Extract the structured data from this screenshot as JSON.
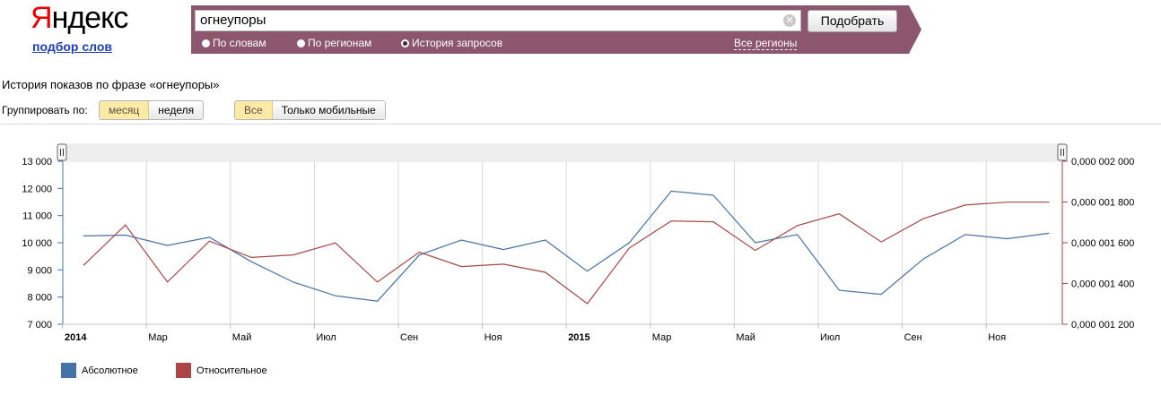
{
  "logo": {
    "brand_first": "Я",
    "brand_rest": "ндекс",
    "subtitle": "подбор слов"
  },
  "search": {
    "value": "огнеупоры",
    "submit_label": "Подобрать",
    "options": [
      {
        "label": "По словам",
        "selected": false
      },
      {
        "label": "По регионам",
        "selected": false
      },
      {
        "label": "История запросов",
        "selected": true
      }
    ],
    "regions_link": "Все регионы"
  },
  "history": {
    "title": "История показов по фразе «огнеупоры»",
    "group_label": "Группировать по:",
    "group_options": [
      {
        "label": "месяц",
        "active": true
      },
      {
        "label": "неделя",
        "active": false
      }
    ],
    "device_options": [
      {
        "label": "Все",
        "active": true
      },
      {
        "label": "Только мобильные",
        "active": false
      }
    ]
  },
  "colors": {
    "absolute": "#4572a7",
    "relative": "#aa4643",
    "search_band": "#8c566e"
  },
  "chart_data": {
    "type": "line",
    "x": [
      "2014-01",
      "2014-02",
      "2014-03",
      "2014-04",
      "2014-05",
      "2014-06",
      "2014-07",
      "2014-08",
      "2014-09",
      "2014-10",
      "2014-11",
      "2014-12",
      "2015-01",
      "2015-02",
      "2015-03",
      "2015-04",
      "2015-05",
      "2015-06",
      "2015-07",
      "2015-08",
      "2015-09",
      "2015-10",
      "2015-11",
      "2015-12"
    ],
    "x_tick_labels": [
      {
        "index": 0,
        "label": "2014",
        "bold": true
      },
      {
        "index": 2,
        "label": "Мар"
      },
      {
        "index": 4,
        "label": "Май"
      },
      {
        "index": 6,
        "label": "Июл"
      },
      {
        "index": 8,
        "label": "Сен"
      },
      {
        "index": 10,
        "label": "Ноя"
      },
      {
        "index": 12,
        "label": "2015",
        "bold": true
      },
      {
        "index": 14,
        "label": "Мар"
      },
      {
        "index": 16,
        "label": "Май"
      },
      {
        "index": 18,
        "label": "Июл"
      },
      {
        "index": 20,
        "label": "Сен"
      },
      {
        "index": 22,
        "label": "Ноя"
      }
    ],
    "series": [
      {
        "name": "Абсолютное",
        "axis": "left",
        "color": "#4572a7",
        "values": [
          10250,
          10280,
          9900,
          10200,
          9300,
          8550,
          8050,
          7850,
          9550,
          10100,
          9750,
          10100,
          8950,
          10000,
          11900,
          11750,
          10000,
          10300,
          8250,
          8100,
          9400,
          10300,
          10150,
          10350
        ]
      },
      {
        "name": "Относительное",
        "axis": "right",
        "color": "#aa4643",
        "values": [
          1.489e-06,
          1.687e-06,
          1.407e-06,
          1.608e-06,
          1.528e-06,
          1.54e-06,
          1.599e-06,
          1.407e-06,
          1.554e-06,
          1.483e-06,
          1.495e-06,
          1.455e-06,
          1.301e-06,
          1.574e-06,
          1.707e-06,
          1.703e-06,
          1.562e-06,
          1.684e-06,
          1.742e-06,
          1.604e-06,
          1.718e-06,
          1.785e-06,
          1.799e-06,
          1.799e-06
        ]
      }
    ],
    "y_left": {
      "ticks": [
        "7 000",
        "8 000",
        "9 000",
        "10 000",
        "11 000",
        "12 000",
        "13 000"
      ],
      "ylim": [
        7000,
        13000
      ]
    },
    "y_right": {
      "ticks": [
        "0,000 001 200",
        "0,000 001 400",
        "0,000 001 600",
        "0,000 001 800",
        "0,000 002 000"
      ],
      "ylim": [
        1.2e-06,
        2e-06
      ]
    },
    "grid": true,
    "legend_position": "bottom-left"
  }
}
